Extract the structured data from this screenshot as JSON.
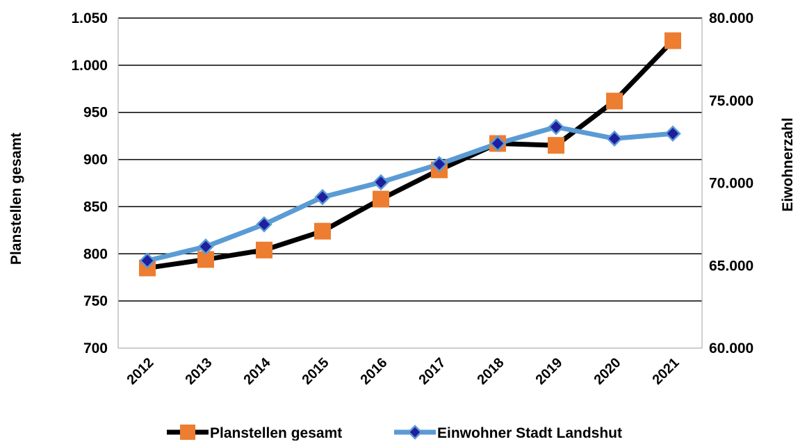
{
  "chart_data": {
    "type": "line",
    "title": "",
    "categories": [
      "2012",
      "2013",
      "2014",
      "2015",
      "2016",
      "2017",
      "2018",
      "2019",
      "2020",
      "2021"
    ],
    "series": [
      {
        "name": "Planstellen gesamt",
        "axis": "left",
        "values": [
          785,
          794,
          804,
          824,
          858,
          889,
          917,
          915,
          962,
          1026
        ],
        "line_color": "#000000",
        "marker": "square",
        "marker_color": "#ED7D31"
      },
      {
        "name": "Einwohner Stadt Landshut",
        "axis": "right",
        "values": [
          65300,
          66150,
          67500,
          69150,
          70050,
          71150,
          72400,
          73400,
          72700,
          73000
        ],
        "line_color": "#5B9BD5",
        "marker": "diamond",
        "marker_color": "#1F1F9E"
      }
    ],
    "ylabel_left": "Planstellen gesamt",
    "ylabel_right": "Eiwohnerzahl",
    "ylim_left": [
      700,
      1050
    ],
    "ylim_right": [
      60000,
      80000
    ],
    "yticks_left": [
      "700",
      "750",
      "800",
      "850",
      "900",
      "950",
      "1.000",
      "1.050"
    ],
    "yticks_right": [
      "60.000",
      "65.000",
      "70.000",
      "75.000",
      "80.000"
    ],
    "grid": "horizontal",
    "legend_position": "bottom"
  }
}
